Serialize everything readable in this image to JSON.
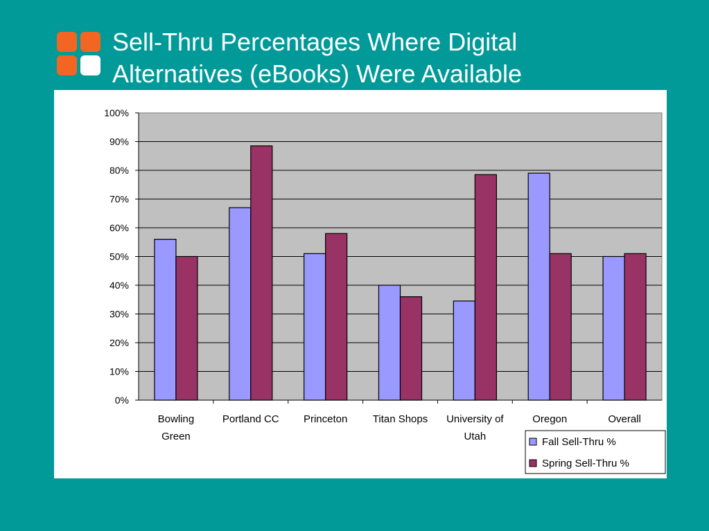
{
  "slide": {
    "title_line1": "Sell-Thru Percentages Where Digital",
    "title_line2": "Alternatives (eBooks) Were Available"
  },
  "colors": {
    "background": "#019a99",
    "logo_orange": "#f26522",
    "plot_area": "#c0c0c0",
    "fall": "#9999ff",
    "spring": "#993366"
  },
  "chart_data": {
    "type": "bar",
    "categories": [
      [
        "Bowling",
        "Green"
      ],
      [
        "Portland CC"
      ],
      [
        "Princeton"
      ],
      [
        "Titan Shops"
      ],
      [
        "University of",
        "Utah"
      ],
      [
        "Oregon"
      ],
      [
        "Overall"
      ]
    ],
    "series": [
      {
        "name": "Fall Sell-Thru %",
        "values": [
          56,
          67,
          51,
          40,
          34.5,
          79,
          50
        ]
      },
      {
        "name": "Spring Sell-Thru %",
        "values": [
          50,
          88.5,
          58,
          36,
          78.5,
          51,
          51
        ]
      }
    ],
    "y_ticks": [
      "0%",
      "10%",
      "20%",
      "30%",
      "40%",
      "50%",
      "60%",
      "70%",
      "80%",
      "90%",
      "100%"
    ],
    "ylim": [
      0,
      100
    ],
    "grid": true,
    "legend": "bottom-right"
  }
}
